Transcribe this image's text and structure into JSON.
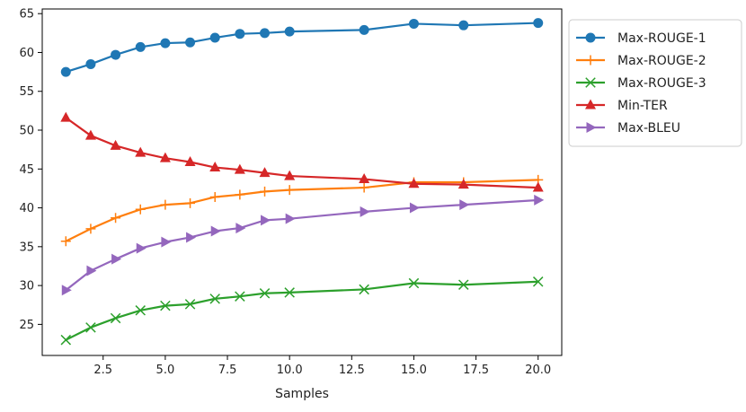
{
  "chart_data": {
    "type": "line",
    "title": "",
    "xlabel": "Samples",
    "ylabel": "",
    "xlim": [
      0.05,
      20.95
    ],
    "ylim": [
      21.0,
      65.6
    ],
    "xticks": [
      2.5,
      5.0,
      7.5,
      10.0,
      12.5,
      15.0,
      17.5,
      20.0
    ],
    "xtick_labels": [
      "2.5",
      "5.0",
      "7.5",
      "10.0",
      "12.5",
      "15.0",
      "17.5",
      "20.0"
    ],
    "yticks": [
      25,
      30,
      35,
      40,
      45,
      50,
      55,
      60,
      65
    ],
    "ytick_labels": [
      "25",
      "30",
      "35",
      "40",
      "45",
      "50",
      "55",
      "60",
      "65"
    ],
    "grid": false,
    "legend_position": "outside-right-top",
    "x": [
      1,
      2,
      3,
      4,
      5,
      6,
      7,
      8,
      9,
      10,
      13,
      15,
      17,
      20
    ],
    "series": [
      {
        "name": "Max-ROUGE-1",
        "color": "#1f77b4",
        "marker": "circle",
        "values": [
          57.5,
          58.5,
          59.7,
          60.7,
          61.2,
          61.3,
          61.9,
          62.4,
          62.5,
          62.7,
          62.9,
          63.7,
          63.5,
          63.8
        ]
      },
      {
        "name": "Max-ROUGE-2",
        "color": "#ff7f0e",
        "marker": "plus",
        "values": [
          35.7,
          37.3,
          38.7,
          39.8,
          40.4,
          40.6,
          41.4,
          41.7,
          42.1,
          42.3,
          42.6,
          43.3,
          43.3,
          43.6
        ]
      },
      {
        "name": "Max-ROUGE-3",
        "color": "#2ca02c",
        "marker": "x",
        "values": [
          23.0,
          24.6,
          25.8,
          26.8,
          27.4,
          27.6,
          28.3,
          28.6,
          29.0,
          29.1,
          29.5,
          30.3,
          30.1,
          30.5
        ]
      },
      {
        "name": "Min-TER",
        "color": "#d62728",
        "marker": "triangle-up",
        "values": [
          51.6,
          49.3,
          48.0,
          47.1,
          46.4,
          45.9,
          45.2,
          44.9,
          44.5,
          44.1,
          43.7,
          43.1,
          43.0,
          42.6
        ]
      },
      {
        "name": "Max-BLEU",
        "color": "#9467bd",
        "marker": "triangle-right",
        "values": [
          29.4,
          31.9,
          33.4,
          34.8,
          35.6,
          36.2,
          37.0,
          37.4,
          38.4,
          38.6,
          39.5,
          40.0,
          40.4,
          41.0
        ]
      }
    ]
  }
}
